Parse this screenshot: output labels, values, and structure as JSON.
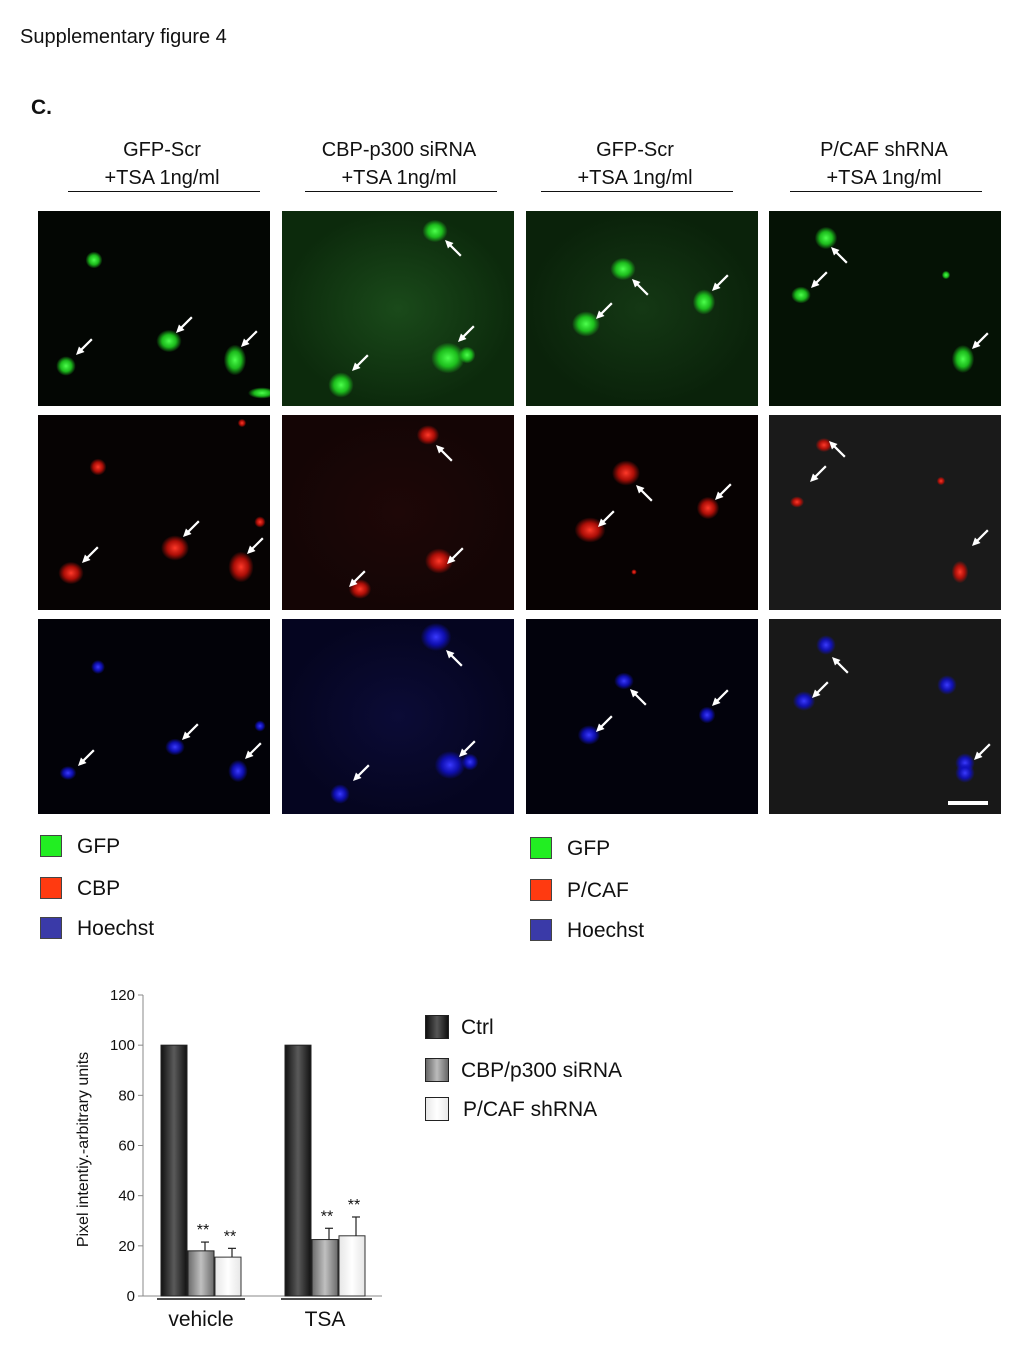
{
  "figure": {
    "title": "Supplementary figure 4",
    "panel_label": "C."
  },
  "columns": [
    {
      "line1": "GFP-Scr",
      "line2": "+TSA 1ng/ml"
    },
    {
      "line1": "CBP-p300 siRNA",
      "line2": "+TSA 1ng/ml"
    },
    {
      "line1": "GFP-Scr",
      "line2": "+TSA 1ng/ml"
    },
    {
      "line1": "P/CAF shRNA",
      "line2": "+TSA 1ng/ml"
    }
  ],
  "micrograph_rows": [
    {
      "channel": "GFP",
      "color": "#2ee02e"
    },
    {
      "channel": "CBP / P/CAF",
      "color": "#ff2a1a"
    },
    {
      "channel": "Hoechst",
      "color": "#1a1aff"
    }
  ],
  "legend_left": [
    {
      "label": "GFP",
      "color": "#22ee22"
    },
    {
      "label": "CBP",
      "color": "#ff3a10"
    },
    {
      "label": "Hoechst",
      "color": "#3a3aa8"
    }
  ],
  "legend_right": [
    {
      "label": "GFP",
      "color": "#22ee22"
    },
    {
      "label": "P/CAF",
      "color": "#ff3a10"
    },
    {
      "label": "Hoechst",
      "color": "#3a3aa8"
    }
  ],
  "chart_data": {
    "type": "bar",
    "ylabel": "Pixel intentiy.-arbitrary units",
    "ylim": [
      0,
      120
    ],
    "yticks": [
      0,
      20,
      40,
      60,
      80,
      100,
      120
    ],
    "categories": [
      "vehicle",
      "TSA"
    ],
    "series": [
      {
        "name": "Ctrl",
        "values": [
          100,
          100
        ],
        "errors": [
          0,
          0
        ],
        "color": "#2a2a2a"
      },
      {
        "name": "CBP/p300 siRNA",
        "values": [
          18,
          22.5
        ],
        "errors": [
          3.5,
          4.5
        ],
        "color": "#8c8c8c"
      },
      {
        "name": "P/CAF shRNA",
        "values": [
          15.5,
          24
        ],
        "errors": [
          3.5,
          7.5
        ],
        "color": "#f0f0f0"
      }
    ],
    "annotations": [
      {
        "category": "vehicle",
        "series": "CBP/p300 siRNA",
        "text": "**"
      },
      {
        "category": "vehicle",
        "series": "P/CAF shRNA",
        "text": "**"
      },
      {
        "category": "TSA",
        "series": "CBP/p300 siRNA",
        "text": "**"
      },
      {
        "category": "TSA",
        "series": "P/CAF shRNA",
        "text": "**"
      }
    ],
    "grid": false,
    "legend_position": "right"
  }
}
